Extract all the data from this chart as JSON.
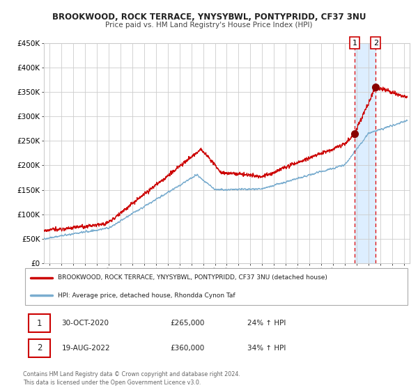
{
  "title": "BROOKWOOD, ROCK TERRACE, YNYSYBWL, PONTYPRIDD, CF37 3NU",
  "subtitle": "Price paid vs. HM Land Registry's House Price Index (HPI)",
  "legend_line1": "BROOKWOOD, ROCK TERRACE, YNYSYBWL, PONTYPRIDD, CF37 3NU (detached house)",
  "legend_line2": "HPI: Average price, detached house, Rhondda Cynon Taf",
  "footer": "Contains HM Land Registry data © Crown copyright and database right 2024.\nThis data is licensed under the Open Government Licence v3.0.",
  "point1_date": "30-OCT-2020",
  "point1_price": "£265,000",
  "point1_hpi": "24% ↑ HPI",
  "point1_value": 265000,
  "point2_date": "19-AUG-2022",
  "point2_price": "£360,000",
  "point2_hpi": "34% ↑ HPI",
  "point2_value": 360000,
  "red_line_color": "#cc0000",
  "blue_line_color": "#7aadcf",
  "highlight_color": "#ddeeff",
  "dashed_line_color": "#dd0000",
  "point_marker_color": "#880000",
  "grid_color": "#cccccc",
  "background_color": "#ffffff",
  "ylim": [
    0,
    450000
  ],
  "yticks": [
    0,
    50000,
    100000,
    150000,
    200000,
    250000,
    300000,
    350000,
    400000,
    450000
  ],
  "xlim_start": 1994.5,
  "xlim_end": 2025.5,
  "point1_x": 2020.83,
  "point2_x": 2022.63
}
